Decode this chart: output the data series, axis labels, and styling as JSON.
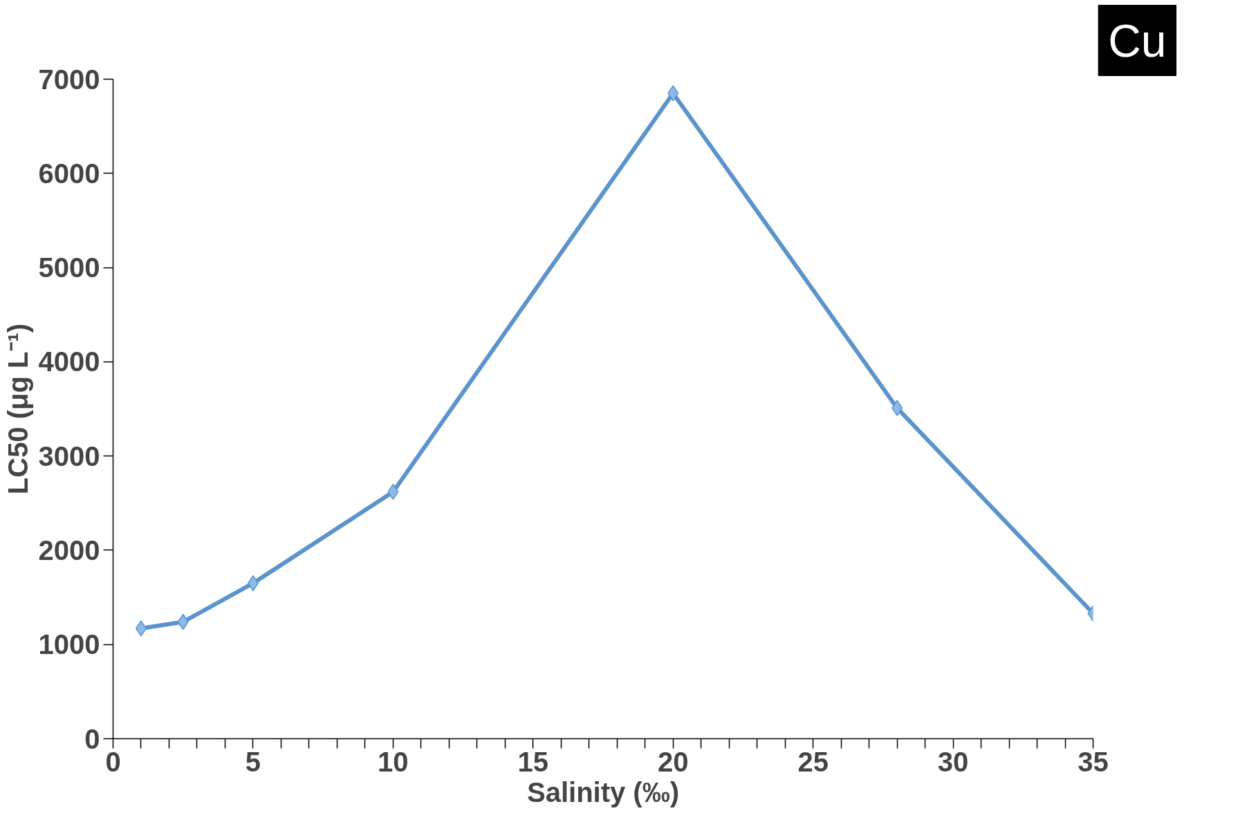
{
  "chart_data": {
    "type": "line",
    "xlabel": "Salinity (‰)",
    "ylabel": "LC50 (μg L⁻¹)",
    "annotations": [
      "Cu"
    ],
    "x": [
      1,
      2.5,
      5,
      10,
      20,
      28,
      35
    ],
    "series": [
      {
        "color": "#5b93cc",
        "values": [
          1170,
          1240,
          1650,
          2620,
          6850,
          3510,
          1330
        ]
      }
    ],
    "xlim": [
      0,
      35
    ],
    "ylim": [
      0,
      7000
    ],
    "xticks": [
      0,
      {
        "value": 1,
        "label": null
      },
      {
        "value": 2,
        "label": null
      },
      {
        "value": 3,
        "label": null
      },
      {
        "value": 4,
        "label": null
      },
      5,
      {
        "value": 6,
        "label": null
      },
      {
        "value": 7,
        "label": null
      },
      {
        "value": 8,
        "label": null
      },
      {
        "value": 9,
        "label": null
      },
      10,
      {
        "value": 11,
        "label": null
      },
      {
        "value": 12,
        "label": null
      },
      {
        "value": 13,
        "label": null
      },
      {
        "value": 14,
        "label": null
      },
      15,
      {
        "value": 16,
        "label": null
      },
      {
        "value": 17,
        "label": null
      },
      {
        "value": 18,
        "label": null
      },
      {
        "value": 19,
        "label": null
      },
      20,
      {
        "value": 21,
        "label": null
      },
      {
        "value": 22,
        "label": null
      },
      {
        "value": 23,
        "label": null
      },
      {
        "value": 24,
        "label": null
      },
      25,
      {
        "value": 26,
        "label": null
      },
      {
        "value": 27,
        "label": null
      },
      {
        "value": 28,
        "label": null
      },
      {
        "value": 29,
        "label": null
      },
      30,
      {
        "value": 31,
        "label": null
      },
      {
        "value": 32,
        "label": null
      },
      {
        "value": 33,
        "label": null
      },
      {
        "value": 34,
        "label": null
      },
      35
    ],
    "yticks": [
      0,
      1000,
      2000,
      3000,
      4000,
      5000,
      6000,
      7000
    ],
    "grid": false,
    "marker": "diamond",
    "line_style": "solid"
  }
}
